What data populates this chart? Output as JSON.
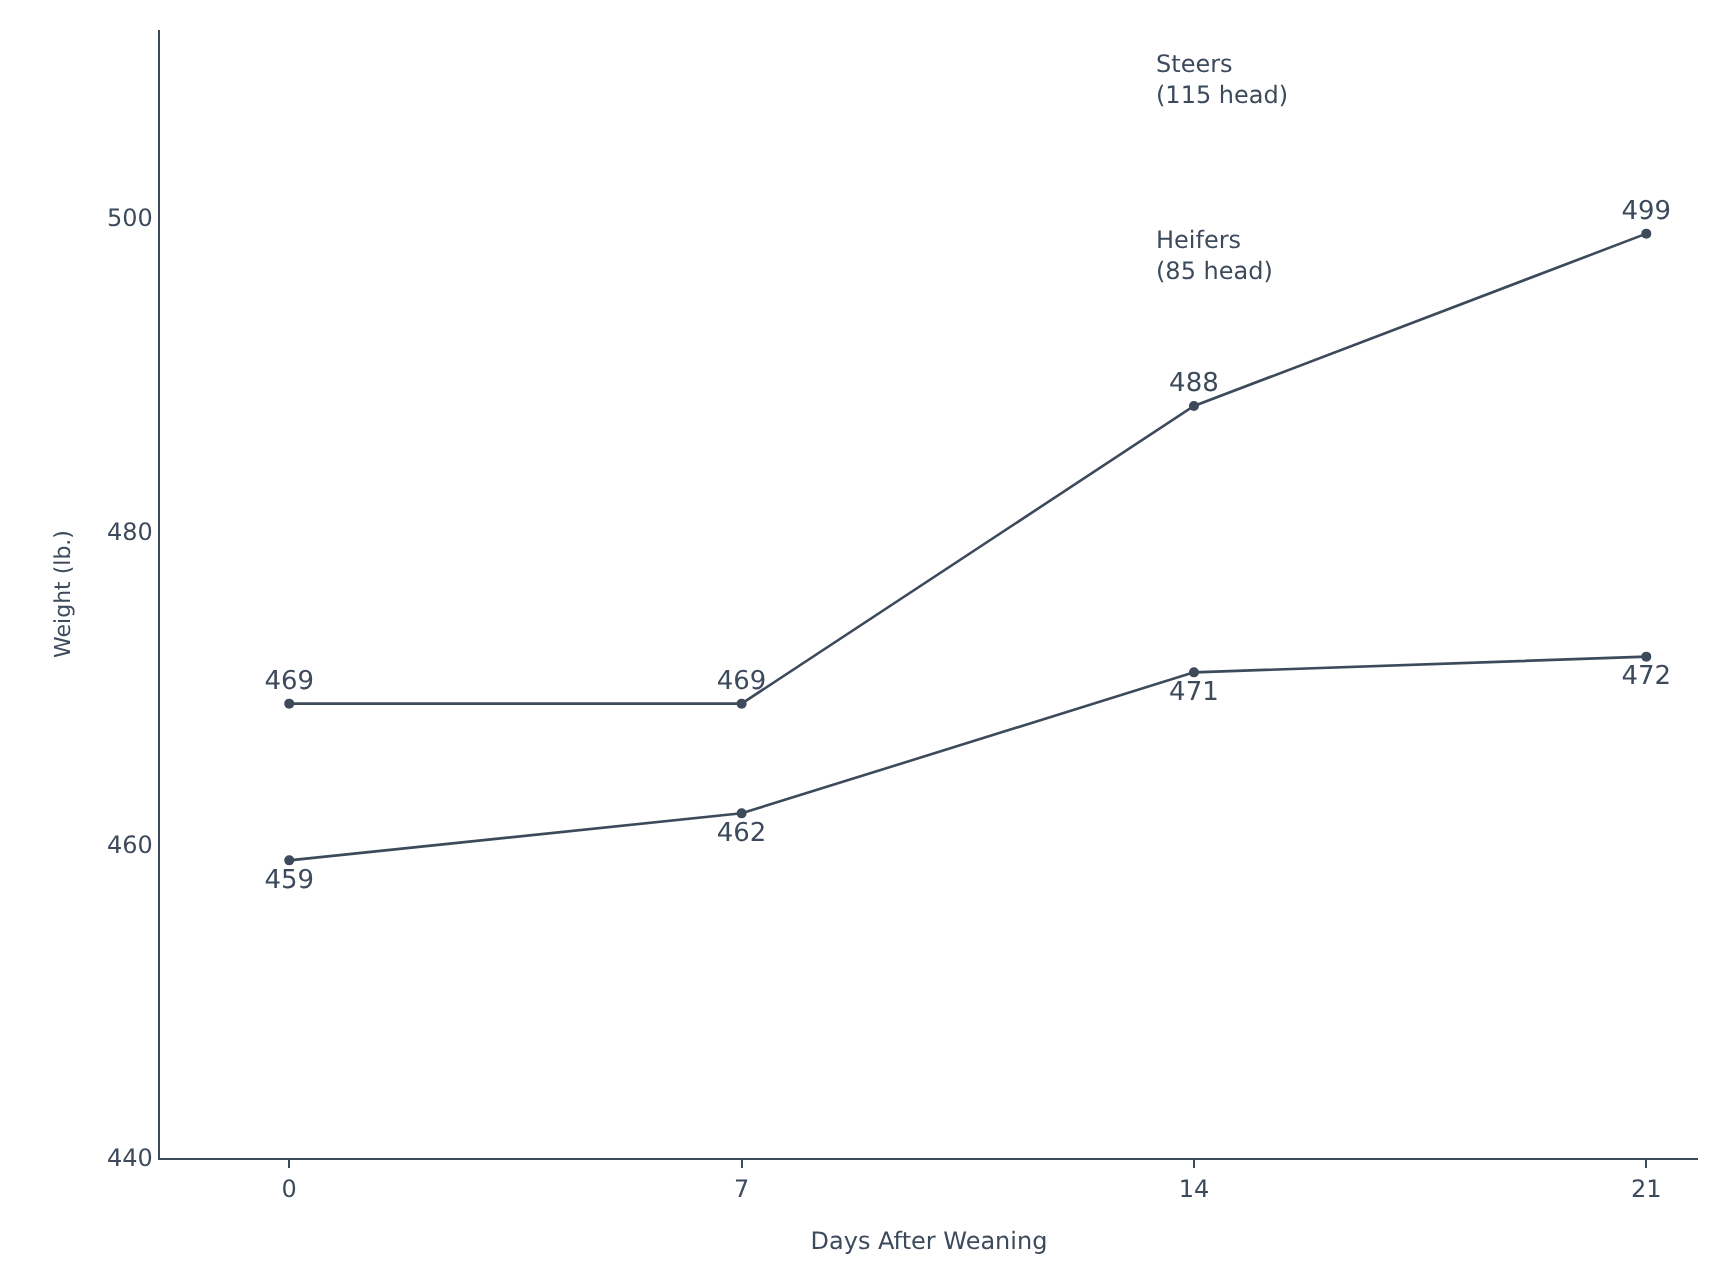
{
  "chart_data": {
    "type": "line",
    "xlabel": "Days After Weaning",
    "ylabel": "Weight (lb.)",
    "x": [
      0,
      7,
      14,
      21
    ],
    "series": [
      {
        "color": "#3d4a5c",
        "values": [
          469,
          469,
          488,
          499
        ]
      },
      {
        "color": "#3d4a5c",
        "values": [
          459,
          462,
          471,
          472
        ]
      }
    ],
    "xlim": [
      -2,
      21.8
    ],
    "xticks": [
      0,
      7,
      14,
      21
    ],
    "ylim": [
      440,
      512
    ],
    "yticks": [
      440,
      460,
      480,
      500
    ],
    "data_labels": true,
    "marker": "circle",
    "line_style": "solid",
    "annotations": [
      "Steers\n(115 head)",
      "Heifers\n(85 head)"
    ]
  }
}
